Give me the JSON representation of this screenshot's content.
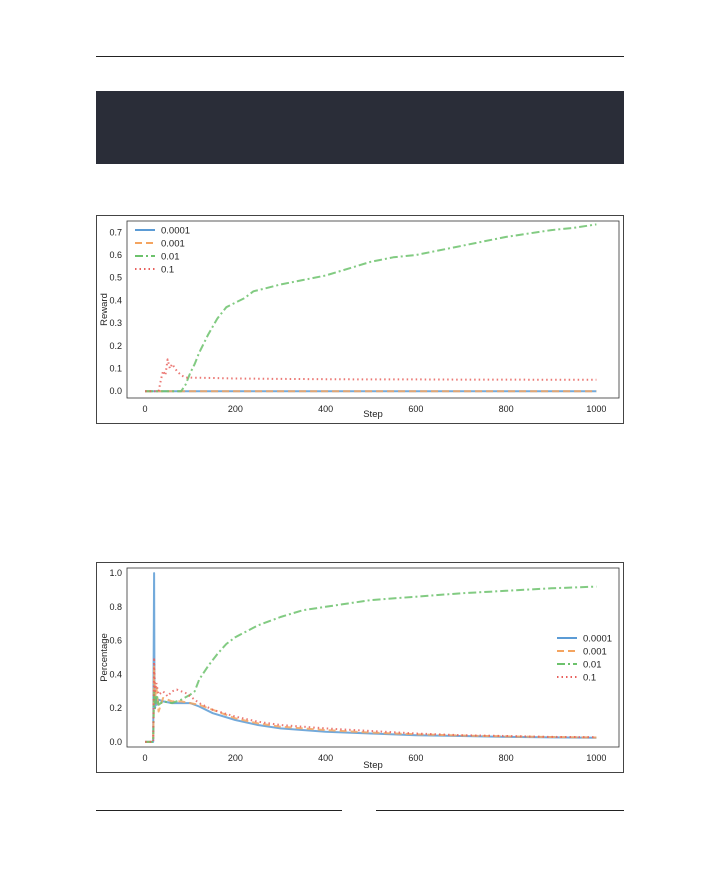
{
  "page": {
    "header_band_color": "#2a2d38"
  },
  "colors": {
    "s0001": "#5b9bd5",
    "s001": "#f4a460",
    "s01": "#6cc26c",
    "s1": "#e8605c"
  },
  "chart_data": [
    {
      "type": "line",
      "title": "",
      "xlabel": "Step",
      "ylabel": "Reward",
      "xlim": [
        -40,
        1050
      ],
      "ylim": [
        -0.03,
        0.75
      ],
      "xticks": [
        "0",
        "200",
        "400",
        "600",
        "800",
        "1000"
      ],
      "yticks": [
        "0.0",
        "0.1",
        "0.2",
        "0.3",
        "0.4",
        "0.5",
        "0.6",
        "0.7"
      ],
      "legend": "top-left",
      "grid": false,
      "series": [
        {
          "name": "0.0001",
          "style": "solid",
          "color": "#5b9bd5",
          "x": [
            0,
            100,
            200,
            400,
            600,
            800,
            1000
          ],
          "y": [
            0,
            0,
            0,
            0,
            0,
            0,
            0
          ]
        },
        {
          "name": "0.001",
          "style": "dashed",
          "color": "#f4a460",
          "x": [
            0,
            100,
            200,
            400,
            600,
            800,
            1000
          ],
          "y": [
            0,
            0,
            0,
            0,
            0,
            0,
            0
          ]
        },
        {
          "name": "0.01",
          "style": "dashdot",
          "color": "#6cc26c",
          "x": [
            0,
            80,
            90,
            100,
            110,
            120,
            140,
            160,
            180,
            200,
            220,
            240,
            260,
            300,
            350,
            400,
            450,
            500,
            550,
            600,
            650,
            700,
            750,
            800,
            850,
            900,
            950,
            1000
          ],
          "y": [
            0,
            0,
            0.03,
            0.08,
            0.12,
            0.17,
            0.25,
            0.32,
            0.37,
            0.39,
            0.41,
            0.44,
            0.45,
            0.47,
            0.49,
            0.51,
            0.54,
            0.57,
            0.59,
            0.6,
            0.62,
            0.64,
            0.66,
            0.68,
            0.695,
            0.71,
            0.72,
            0.735
          ]
        },
        {
          "name": "0.1",
          "style": "dotted",
          "color": "#e8605c",
          "x": [
            0,
            30,
            35,
            40,
            45,
            50,
            55,
            60,
            70,
            80,
            90,
            100,
            150,
            200,
            300,
            400,
            500,
            600,
            700,
            800,
            900,
            1000
          ],
          "y": [
            0,
            0,
            0.05,
            0.09,
            0.07,
            0.14,
            0.1,
            0.12,
            0.09,
            0.07,
            0.06,
            0.06,
            0.058,
            0.056,
            0.054,
            0.053,
            0.052,
            0.052,
            0.051,
            0.051,
            0.05,
            0.05
          ]
        }
      ]
    },
    {
      "type": "line",
      "title": "",
      "xlabel": "Step",
      "ylabel": "Percentage",
      "xlim": [
        -40,
        1050
      ],
      "ylim": [
        -0.03,
        1.03
      ],
      "xticks": [
        "0",
        "200",
        "400",
        "600",
        "800",
        "1000"
      ],
      "yticks": [
        "0.0",
        "0.2",
        "0.4",
        "0.6",
        "0.8",
        "1.0"
      ],
      "legend": "center-right",
      "grid": false,
      "series": [
        {
          "name": "0.0001",
          "style": "solid",
          "color": "#5b9bd5",
          "x": [
            0,
            18,
            20,
            21,
            22,
            24,
            26,
            30,
            40,
            60,
            80,
            100,
            120,
            150,
            200,
            250,
            300,
            400,
            500,
            600,
            700,
            800,
            900,
            1000
          ],
          "y": [
            0,
            0,
            1.0,
            0.3,
            0.2,
            0.26,
            0.22,
            0.25,
            0.24,
            0.23,
            0.23,
            0.23,
            0.21,
            0.17,
            0.13,
            0.1,
            0.08,
            0.06,
            0.05,
            0.04,
            0.035,
            0.03,
            0.027,
            0.025
          ]
        },
        {
          "name": "0.001",
          "style": "dashed",
          "color": "#f4a460",
          "x": [
            0,
            18,
            20,
            22,
            25,
            30,
            40,
            60,
            80,
            100,
            120,
            150,
            200,
            250,
            300,
            400,
            500,
            600,
            700,
            800,
            900,
            1000
          ],
          "y": [
            0,
            0,
            0.45,
            0.25,
            0.33,
            0.18,
            0.26,
            0.24,
            0.24,
            0.23,
            0.22,
            0.19,
            0.14,
            0.11,
            0.09,
            0.07,
            0.055,
            0.045,
            0.038,
            0.033,
            0.029,
            0.026
          ]
        },
        {
          "name": "0.01",
          "style": "dashdot",
          "color": "#6cc26c",
          "x": [
            0,
            18,
            20,
            22,
            26,
            30,
            40,
            60,
            80,
            100,
            110,
            120,
            140,
            160,
            180,
            200,
            250,
            300,
            350,
            400,
            500,
            600,
            700,
            800,
            900,
            1000
          ],
          "y": [
            0,
            0,
            0.3,
            0.2,
            0.28,
            0.22,
            0.24,
            0.23,
            0.25,
            0.28,
            0.3,
            0.37,
            0.45,
            0.52,
            0.58,
            0.62,
            0.69,
            0.74,
            0.78,
            0.8,
            0.84,
            0.86,
            0.88,
            0.895,
            0.91,
            0.92
          ]
        },
        {
          "name": "0.1",
          "style": "dotted",
          "color": "#e8605c",
          "x": [
            0,
            18,
            20,
            22,
            25,
            30,
            40,
            50,
            60,
            70,
            80,
            90,
            100,
            120,
            150,
            200,
            250,
            300,
            400,
            500,
            600,
            700,
            800,
            900,
            1000
          ],
          "y": [
            0,
            0,
            0.5,
            0.3,
            0.35,
            0.28,
            0.3,
            0.27,
            0.3,
            0.31,
            0.3,
            0.29,
            0.27,
            0.23,
            0.19,
            0.15,
            0.12,
            0.1,
            0.08,
            0.065,
            0.05,
            0.04,
            0.035,
            0.03,
            0.028
          ]
        }
      ]
    }
  ]
}
